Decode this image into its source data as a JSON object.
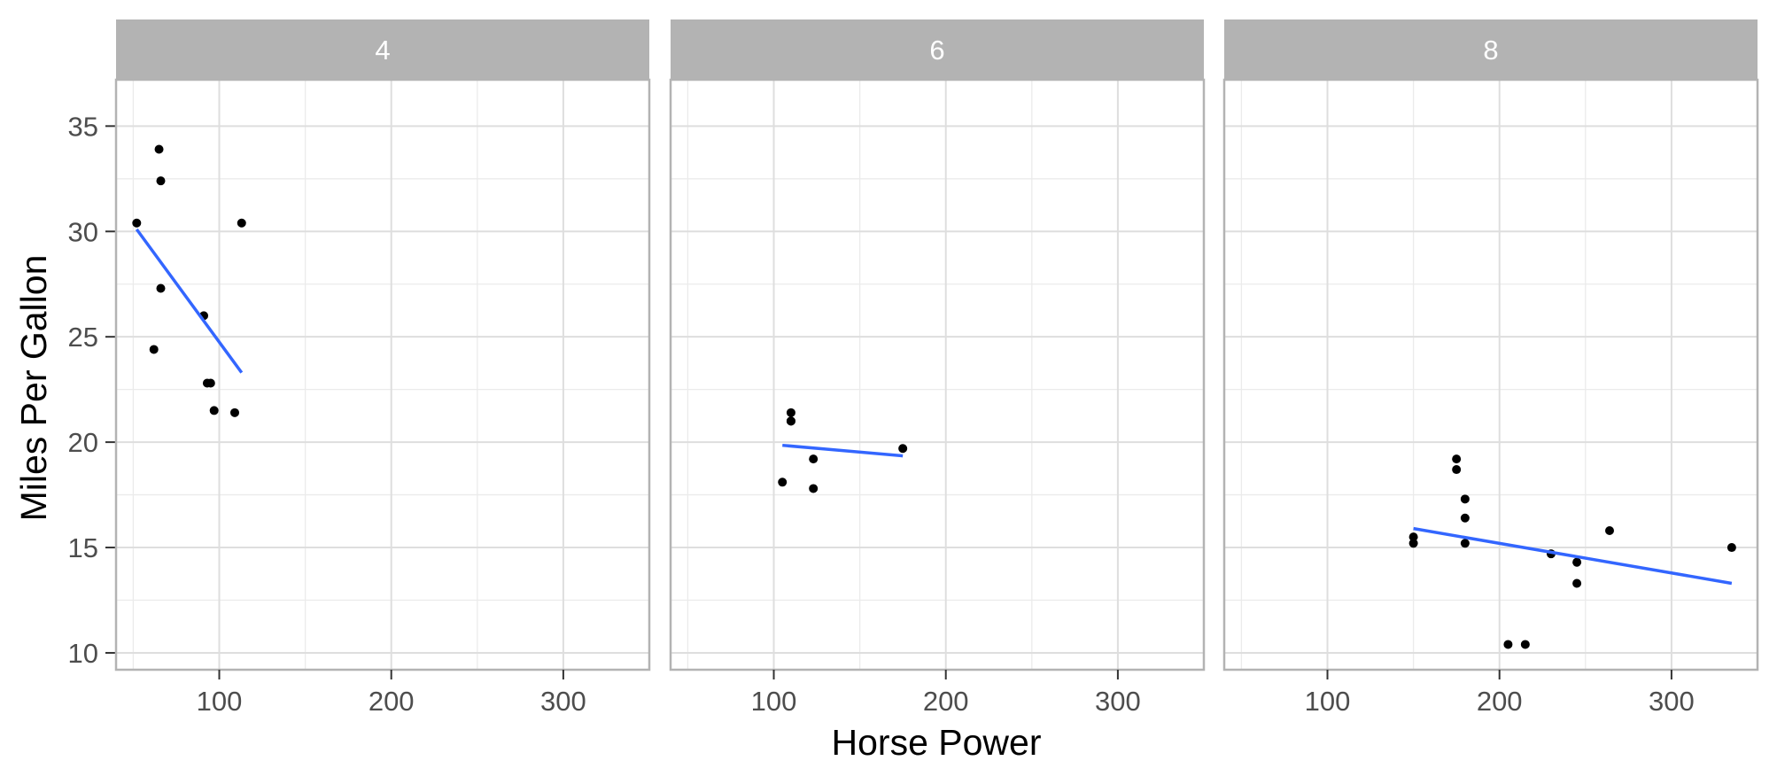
{
  "chart_data": {
    "type": "scatter",
    "facet_variable": "cyl",
    "xlabel": "Horse Power",
    "ylabel": "Miles Per Gallon",
    "xlim": [
      40,
      350
    ],
    "ylim": [
      9.2,
      37.2
    ],
    "x_ticks": [
      100,
      200,
      300
    ],
    "y_ticks": [
      10,
      15,
      20,
      25,
      30,
      35
    ],
    "x_tick_labels": [
      "100",
      "200",
      "300"
    ],
    "y_tick_labels": [
      "10",
      "15",
      "20",
      "25",
      "30",
      "35"
    ],
    "grid": true,
    "point_color": "#000000",
    "fit_line_color": "#3366ff",
    "strip_color": "#b3b3b3",
    "panels": [
      {
        "label": "4",
        "points": [
          {
            "x": 93,
            "y": 22.8
          },
          {
            "x": 62,
            "y": 24.4
          },
          {
            "x": 95,
            "y": 22.8
          },
          {
            "x": 66,
            "y": 32.4
          },
          {
            "x": 52,
            "y": 30.4
          },
          {
            "x": 65,
            "y": 33.9
          },
          {
            "x": 97,
            "y": 21.5
          },
          {
            "x": 66,
            "y": 27.3
          },
          {
            "x": 91,
            "y": 26.0
          },
          {
            "x": 113,
            "y": 30.4
          },
          {
            "x": 109,
            "y": 21.4
          }
        ],
        "fit": {
          "x": [
            52,
            113
          ],
          "y": [
            30.1,
            23.3
          ]
        }
      },
      {
        "label": "6",
        "points": [
          {
            "x": 110,
            "y": 21.0
          },
          {
            "x": 110,
            "y": 21.4
          },
          {
            "x": 110,
            "y": 21.0
          },
          {
            "x": 105,
            "y": 18.1
          },
          {
            "x": 123,
            "y": 19.2
          },
          {
            "x": 123,
            "y": 17.8
          },
          {
            "x": 175,
            "y": 19.7
          }
        ],
        "fit": {
          "x": [
            105,
            175
          ],
          "y": [
            19.85,
            19.35
          ]
        }
      },
      {
        "label": "8",
        "points": [
          {
            "x": 175,
            "y": 18.7
          },
          {
            "x": 245,
            "y": 14.3
          },
          {
            "x": 180,
            "y": 16.4
          },
          {
            "x": 180,
            "y": 17.3
          },
          {
            "x": 180,
            "y": 15.2
          },
          {
            "x": 205,
            "y": 10.4
          },
          {
            "x": 215,
            "y": 10.4
          },
          {
            "x": 230,
            "y": 14.7
          },
          {
            "x": 150,
            "y": 15.5
          },
          {
            "x": 150,
            "y": 15.2
          },
          {
            "x": 245,
            "y": 13.3
          },
          {
            "x": 175,
            "y": 19.2
          },
          {
            "x": 264,
            "y": 15.8
          },
          {
            "x": 335,
            "y": 15.0
          }
        ],
        "fit": {
          "x": [
            150,
            335
          ],
          "y": [
            15.9,
            13.3
          ]
        }
      }
    ]
  }
}
